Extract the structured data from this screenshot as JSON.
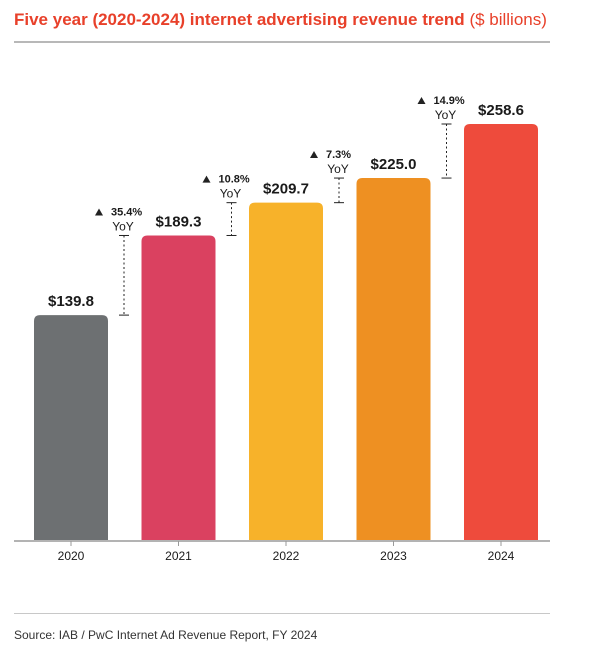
{
  "header": {
    "title_bold": "Five year (2020-2024) internet advertising revenue trend",
    "title_unit": "($ billions)"
  },
  "footer": {
    "source": "Source:  IAB / PwC Internet Ad Revenue Report, FY 2024"
  },
  "chart_data": {
    "type": "bar",
    "categories": [
      "2020",
      "2021",
      "2022",
      "2023",
      "2024"
    ],
    "values": [
      139.8,
      189.3,
      209.7,
      225.0,
      258.6
    ],
    "value_labels": [
      "$139.8",
      "$189.3",
      "$209.7",
      "$225.0",
      "$258.6"
    ],
    "yoy_changes": [
      {
        "from": "2020",
        "to": "2021",
        "percent": "35.4%",
        "label": "YoY",
        "direction": "up"
      },
      {
        "from": "2021",
        "to": "2022",
        "percent": "10.8%",
        "label": "YoY",
        "direction": "up"
      },
      {
        "from": "2022",
        "to": "2023",
        "percent": "7.3%",
        "label": "YoY",
        "direction": "up"
      },
      {
        "from": "2023",
        "to": "2024",
        "percent": "14.9%",
        "label": "YoY",
        "direction": "up"
      }
    ],
    "colors": [
      "#6d7072",
      "#da4160",
      "#f7b22a",
      "#ee9022",
      "#ee4b3c"
    ],
    "ylim": [
      0,
      258.6
    ],
    "grid": false
  }
}
